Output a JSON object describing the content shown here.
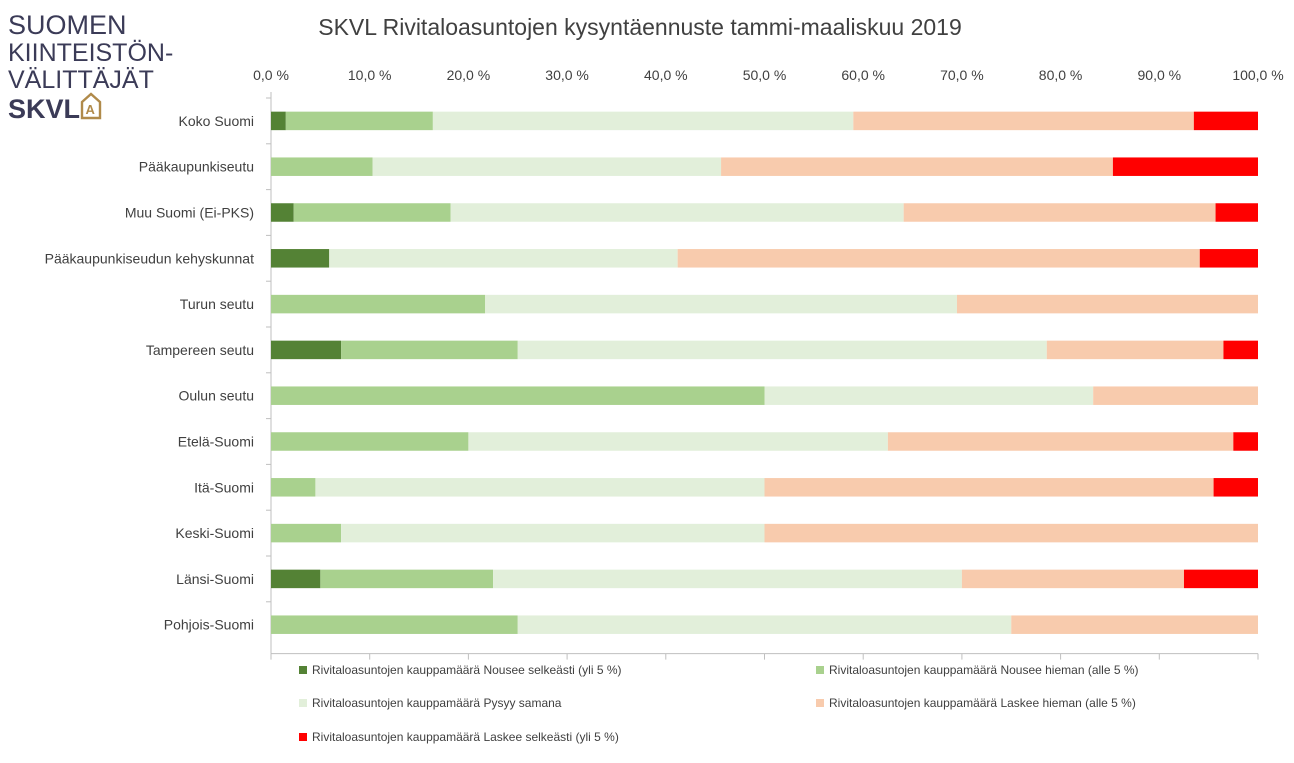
{
  "logo": {
    "lines": [
      "SUOMEN",
      "KIINTEISTÖN-",
      "VÄLITTÄJÄT"
    ],
    "brand": "SKVL",
    "mark": "A"
  },
  "colors": {
    "s1": "#548235",
    "s2": "#a9d18e",
    "s3": "#e2efda",
    "s4": "#f8cbad",
    "s5": "#ff0000",
    "axis": "#bfbfbf",
    "text": "#404040"
  },
  "chart_data": {
    "type": "bar",
    "orientation": "horizontal",
    "stacked": "percent",
    "title": "SKVL Rivitaloasuntojen kysyntäennuste tammi-maaliskuu 2019",
    "xlim": [
      0,
      100
    ],
    "x_ticks": [
      "0,0 %",
      "10,0 %",
      "20,0 %",
      "30,0 %",
      "40,0 %",
      "50,0 %",
      "60,0 %",
      "70,0 %",
      "80,0 %",
      "90,0 %",
      "100,0 %"
    ],
    "x_tick_position": "top",
    "grid": false,
    "legend_position": "bottom",
    "categories": [
      "Koko Suomi",
      "Pääkaupunkiseutu",
      "Muu Suomi (Ei-PKS)",
      "Pääkaupunkiseudun kehyskunnat",
      "Turun seutu",
      "Tampereen seutu",
      "Oulun seutu",
      "Etelä-Suomi",
      "Itä-Suomi",
      "Keski-Suomi",
      "Länsi-Suomi",
      "Pohjois-Suomi"
    ],
    "series": [
      {
        "name": "Rivitaloasuntojen kauppamäärä Nousee selkeästi (yli 5 %)",
        "values": [
          1.5,
          0,
          2.3,
          5.9,
          0,
          7.1,
          0,
          0,
          0,
          0,
          5.0,
          0
        ]
      },
      {
        "name": "Rivitaloasuntojen kauppamäärä Nousee hieman (alle 5 %)",
        "values": [
          14.9,
          10.3,
          15.9,
          0,
          21.7,
          17.9,
          50.0,
          20.0,
          4.5,
          7.1,
          17.5,
          25.0
        ]
      },
      {
        "name": "Rivitaloasuntojen kauppamäärä Pysyy samana",
        "values": [
          42.6,
          35.3,
          45.9,
          35.3,
          47.8,
          53.6,
          33.3,
          42.5,
          45.5,
          42.9,
          47.5,
          50.0
        ]
      },
      {
        "name": "Rivitaloasuntojen kauppamäärä Laskee hieman (alle 5 %)",
        "values": [
          34.5,
          39.7,
          31.6,
          52.9,
          30.5,
          17.9,
          16.7,
          35.0,
          45.5,
          50.0,
          22.5,
          25.0
        ]
      },
      {
        "name": "Rivitaloasuntojen kauppamäärä Laskee selkeästi (yli 5 %)",
        "values": [
          6.5,
          14.7,
          4.3,
          5.9,
          0,
          3.5,
          0,
          2.5,
          4.5,
          0,
          7.5,
          0
        ]
      }
    ]
  }
}
